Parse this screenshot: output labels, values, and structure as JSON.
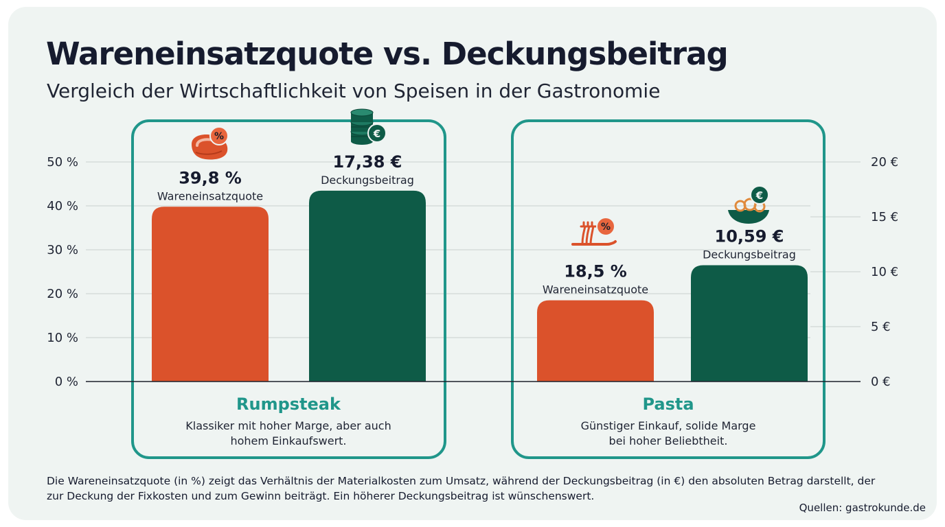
{
  "title": "Wareneinsatzquote vs. Deckungsbeitrag",
  "subtitle": "Vergleich der Wirtschaftlichkeit von Speisen in der Gastronomie",
  "footnote": "Die Wareneinsatzquote (in %) zeigt das Verhältnis der Materialkosten zum Umsatz, während der Deckungsbeitrag (in €) den absoluten Betrag darstellt, der zur Deckung der Fixkosten und zum Gewinn beiträgt. Ein höherer Deckungsbeitrag ist wünschenswert.",
  "source": "Quellen: gastrokunde.de",
  "colors": {
    "quote": "#db522b",
    "beitrag": "#0e5b47",
    "frame": "#20968a",
    "background": "#eff4f2"
  },
  "chart_data": {
    "type": "bar",
    "title": "Wareneinsatzquote vs. Deckungsbeitrag",
    "subtitle": "Vergleich der Wirtschaftlichkeit von Speisen in der Gastronomie",
    "y_left": {
      "unit": "%",
      "range": [
        0,
        50
      ],
      "ticks": [
        "0 %",
        "10 %",
        "20 %",
        "30 %",
        "40 %",
        "50 %"
      ],
      "tick_values": [
        0,
        10,
        20,
        30,
        40,
        50
      ]
    },
    "y_right": {
      "unit": "€",
      "range": [
        0,
        20
      ],
      "ticks": [
        "0 €",
        "5 €",
        "10 €",
        "15 €",
        "20 €"
      ],
      "tick_values": [
        0,
        5,
        10,
        15,
        20
      ]
    },
    "grid": true,
    "categories": [
      "Rumpsteak",
      "Pasta"
    ],
    "descriptions": [
      [
        "Klassiker mit hoher Marge, aber auch",
        "hohem Einkaufswert."
      ],
      [
        "Günstiger Einkauf, solide Marge",
        "bei hoher Beliebtheit."
      ]
    ],
    "series": [
      {
        "name": "Wareneinsatzquote",
        "axis": "left",
        "values": [
          39.8,
          18.5
        ],
        "labels": [
          "39,8 %",
          "18,5 %"
        ],
        "icons": [
          "steak-percent-icon",
          "noodle-fork-percent-icon"
        ]
      },
      {
        "name": "Deckungsbeitrag",
        "axis": "right",
        "values": [
          17.38,
          10.59
        ],
        "labels": [
          "17,38 €",
          "10,59 €"
        ],
        "icons": [
          "coin-stack-euro-icon",
          "pasta-bowl-euro-icon"
        ]
      }
    ]
  }
}
